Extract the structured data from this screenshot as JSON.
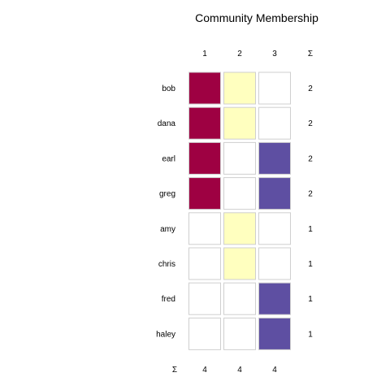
{
  "chart_data": {
    "type": "heatmap",
    "title": "Community Membership",
    "columns": [
      "1",
      "2",
      "3"
    ],
    "column_total_label": "Σ",
    "row_total_label": "Σ",
    "rows": [
      "bob",
      "dana",
      "earl",
      "greg",
      "amy",
      "chris",
      "fred",
      "haley"
    ],
    "membership": [
      [
        1,
        1,
        0
      ],
      [
        1,
        1,
        0
      ],
      [
        1,
        0,
        1
      ],
      [
        1,
        0,
        1
      ],
      [
        0,
        1,
        0
      ],
      [
        0,
        1,
        0
      ],
      [
        0,
        0,
        1
      ],
      [
        0,
        0,
        1
      ]
    ],
    "row_totals": [
      "2",
      "2",
      "2",
      "2",
      "1",
      "1",
      "1",
      "1"
    ],
    "column_totals": [
      "4",
      "4",
      "4"
    ],
    "colors": {
      "community_1": "#9e0142",
      "community_2": "#ffffbf",
      "community_3": "#5e4fa2",
      "empty": "#ffffff",
      "cell_border": "#cfcfcf"
    }
  }
}
